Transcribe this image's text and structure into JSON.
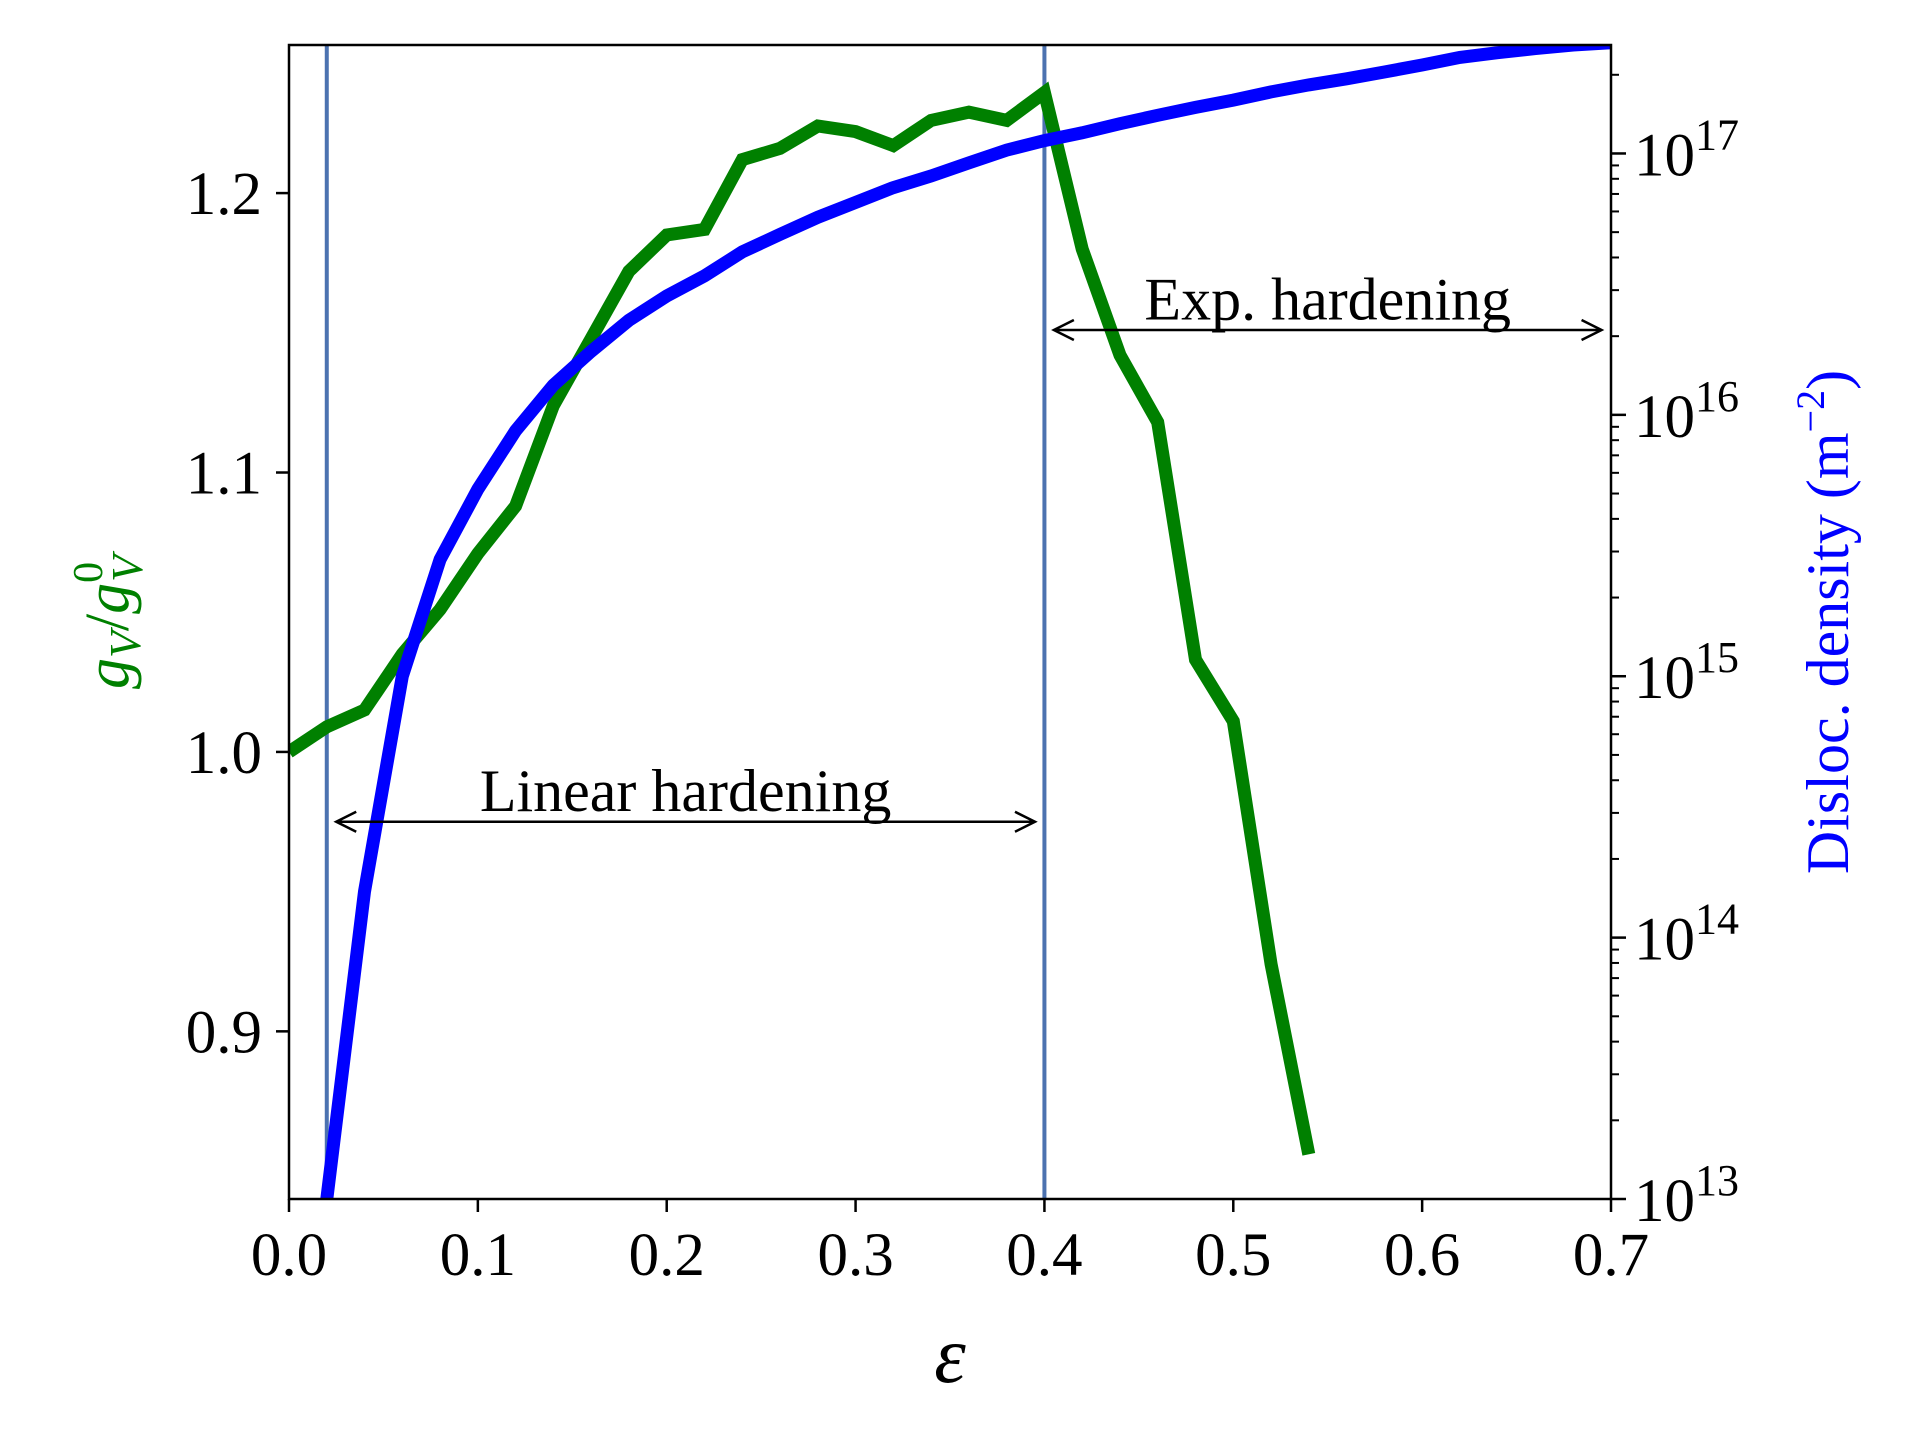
{
  "chart_data": {
    "type": "line",
    "xlabel": "ε",
    "xlim": [
      0.0,
      0.7
    ],
    "xticks": [
      0.0,
      0.1,
      0.2,
      0.3,
      0.4,
      0.5,
      0.6,
      0.7
    ],
    "xtick_labels": [
      "0.0",
      "0.1",
      "0.2",
      "0.3",
      "0.4",
      "0.5",
      "0.6",
      "0.7"
    ],
    "left_axis": {
      "label_main": "g",
      "label_sub": "V",
      "label_sep": "/",
      "label_main2": "g",
      "label_sup2": "0",
      "label_sub2": "V",
      "color": "#008000",
      "ylim": [
        0.84,
        1.253
      ],
      "ticks": [
        0.9,
        1.0,
        1.1,
        1.2
      ],
      "tick_labels": [
        "0.9",
        "1.0",
        "1.1",
        "1.2"
      ]
    },
    "right_axis": {
      "label_text": "Disloc. density (m",
      "label_sup": "−2",
      "label_close": ")",
      "color": "#0000ff",
      "scale": "log",
      "ylim": [
        10000000000000.0,
        2.6e+17
      ],
      "ticks": [
        10000000000000.0,
        100000000000000.0,
        1000000000000000.0,
        1e+16,
        1e+17
      ],
      "tick_base": "10",
      "tick_exponents": [
        "13",
        "14",
        "15",
        "16",
        "17"
      ]
    },
    "series": [
      {
        "axis": "left",
        "color": "#008000",
        "x": [
          0.0,
          0.02,
          0.04,
          0.06,
          0.08,
          0.1,
          0.12,
          0.14,
          0.16,
          0.18,
          0.2,
          0.22,
          0.24,
          0.26,
          0.28,
          0.3,
          0.32,
          0.34,
          0.36,
          0.38,
          0.4,
          0.42,
          0.44,
          0.46,
          0.48,
          0.5,
          0.52,
          0.54
        ],
        "y": [
          1.0,
          1.009,
          1.015,
          1.035,
          1.051,
          1.071,
          1.088,
          1.124,
          1.148,
          1.172,
          1.185,
          1.187,
          1.212,
          1.216,
          1.224,
          1.222,
          1.217,
          1.226,
          1.229,
          1.226,
          1.236,
          1.18,
          1.142,
          1.118,
          1.033,
          1.011,
          0.924,
          0.856
        ]
      },
      {
        "axis": "right",
        "color": "#0000ff",
        "x": [
          0.02,
          0.04,
          0.06,
          0.08,
          0.1,
          0.12,
          0.14,
          0.16,
          0.18,
          0.2,
          0.22,
          0.24,
          0.26,
          0.28,
          0.3,
          0.32,
          0.34,
          0.36,
          0.38,
          0.4,
          0.42,
          0.44,
          0.46,
          0.48,
          0.5,
          0.52,
          0.54,
          0.56,
          0.58,
          0.6,
          0.62,
          0.64,
          0.66,
          0.68,
          0.7
        ],
        "y": [
          10000000000000.0,
          150000000000000.0,
          1000000000000000.0,
          2800000000000000.0,
          5200000000000000.0,
          8700000000000000.0,
          1.3e+16,
          1.75e+16,
          2.3e+16,
          2.85e+16,
          3.4e+16,
          4.2e+16,
          4.9e+16,
          5.7e+16,
          6.5e+16,
          7.4e+16,
          8.2e+16,
          9.2e+16,
          1.03e+17,
          1.12e+17,
          1.2e+17,
          1.3e+17,
          1.4e+17,
          1.5e+17,
          1.6e+17,
          1.72e+17,
          1.83e+17,
          1.93e+17,
          2.05e+17,
          2.18e+17,
          2.33e+17,
          2.43e+17,
          2.52e+17,
          2.6e+17,
          2.65e+17
        ]
      }
    ],
    "vlines": [
      0.02,
      0.4
    ],
    "vline_color": "#4c72b0",
    "annotations": [
      {
        "text": "Linear hardening",
        "x_start": 0.025,
        "x_end": 0.395,
        "arrow_y": 0.975,
        "text_y": 0.986
      },
      {
        "text": "Exp. hardening",
        "x_start": 0.405,
        "x_end": 0.695,
        "arrow_y": 1.151,
        "text_y": 1.162
      }
    ],
    "grid": false
  }
}
